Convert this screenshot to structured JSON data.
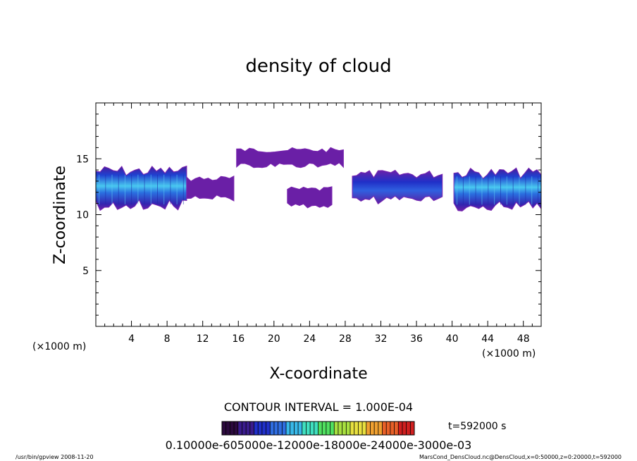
{
  "chart_data": {
    "type": "contour",
    "title": "density of cloud",
    "xlabel": "X-coordinate",
    "ylabel": "Z-coordinate",
    "x_unit_left": "(×1000 m)",
    "x_unit_right": "(×1000 m)",
    "xlim": [
      0,
      50
    ],
    "ylim": [
      0,
      20
    ],
    "x_ticks": [
      4,
      8,
      12,
      16,
      20,
      24,
      28,
      32,
      36,
      40,
      44,
      48
    ],
    "y_ticks": [
      5,
      10,
      15
    ],
    "contour_interval_text": "CONTOUR INTERVAL = 1.000E-04",
    "time_text": "t=592000 s",
    "colorbar_labels": "0.10000e-605000e-12000e-18000e-24000e-3000e-03",
    "colorbar_colors": [
      "#2b0a3d",
      "#3a1c8c",
      "#2030c8",
      "#2f6de0",
      "#38b8e8",
      "#40e0c0",
      "#50e060",
      "#a8e040",
      "#e8e040",
      "#f0a030",
      "#e86028",
      "#d02020"
    ],
    "cloud_regions": [
      {
        "x": [
          0,
          10.2
        ],
        "z": [
          10.3,
          14.4
        ],
        "level": "high"
      },
      {
        "x": [
          10.2,
          15.5
        ],
        "z": [
          11.2,
          13.5
        ],
        "level": "low"
      },
      {
        "x": [
          15.8,
          27.8
        ],
        "z": [
          14.2,
          16.0
        ],
        "level": "low"
      },
      {
        "x": [
          21.5,
          26.5
        ],
        "z": [
          10.6,
          12.5
        ],
        "level": "low"
      },
      {
        "x": [
          28.8,
          38.9
        ],
        "z": [
          10.9,
          14.0
        ],
        "level": "mid"
      },
      {
        "x": [
          40.2,
          50
        ],
        "z": [
          10.3,
          14.2
        ],
        "level": "high"
      }
    ]
  },
  "footer": {
    "left": "/usr/bin/gpview   2008-11-20",
    "right": "MarsCond_DensCloud.nc@DensCloud,x=0:50000,z=0:20000,t=592000"
  }
}
